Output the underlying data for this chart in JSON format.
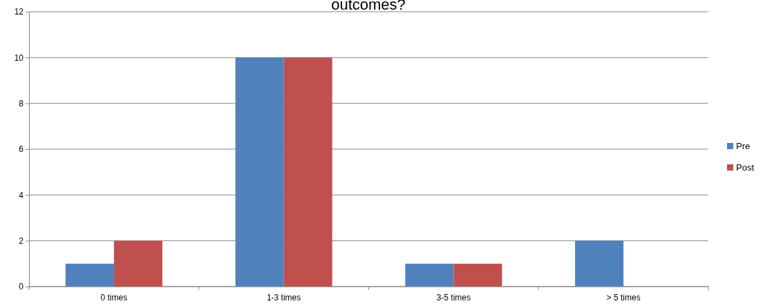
{
  "chart_data": {
    "type": "bar",
    "title": "outcomes?",
    "categories": [
      "0 times",
      "1-3 times",
      "3-5 times",
      "> 5 times"
    ],
    "series": [
      {
        "name": "Pre",
        "color": "#4f81bd",
        "values": [
          1,
          10,
          1,
          2
        ]
      },
      {
        "name": "Post",
        "color": "#c0504d",
        "values": [
          2,
          10,
          1,
          0
        ]
      }
    ],
    "ylim": [
      0,
      12
    ],
    "yticks": [
      0,
      2,
      4,
      6,
      8,
      10,
      12
    ],
    "grid": "y",
    "legend": "right"
  }
}
